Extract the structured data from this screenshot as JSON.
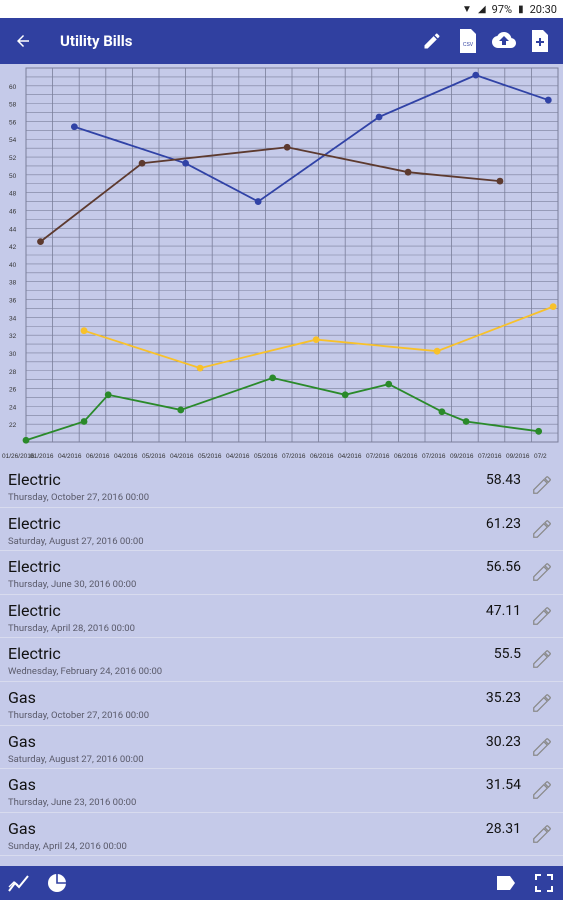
{
  "status": {
    "battery": "97%",
    "time": "20:30"
  },
  "app_bar": {
    "title": "Utility Bills"
  },
  "chart_data": {
    "type": "line",
    "ylim": [
      20,
      62
    ],
    "yticks": [
      22,
      24,
      26,
      28,
      30,
      32,
      34,
      36,
      38,
      40,
      42,
      44,
      46,
      48,
      50,
      52,
      54,
      56,
      58,
      60
    ],
    "x_labels": [
      "01/26/2016",
      "01/2016",
      "04/2016",
      "06/2016",
      "04/2016",
      "05/2016",
      "04/2016",
      "05/2016",
      "04/2016",
      "05/2016",
      "07/2016",
      "06/2016",
      "04/2016",
      "07/2016",
      "06/2016",
      "07/2016",
      "09/2016",
      "07/2016",
      "09/2016",
      "07/2"
    ],
    "series": [
      {
        "color": "#3042a6",
        "points": [
          [
            1.0,
            55.4
          ],
          [
            3.3,
            51.3
          ],
          [
            4.8,
            47.0
          ],
          [
            7.3,
            56.5
          ],
          [
            9.3,
            61.2
          ],
          [
            10.8,
            58.4
          ]
        ]
      },
      {
        "color": "#5d3a2f",
        "points": [
          [
            0.3,
            42.5
          ],
          [
            2.4,
            51.3
          ],
          [
            5.4,
            53.1
          ],
          [
            7.9,
            50.3
          ],
          [
            9.8,
            49.3
          ]
        ]
      },
      {
        "color": "#f8c12a",
        "points": [
          [
            1.2,
            32.5
          ],
          [
            3.6,
            28.3
          ],
          [
            6.0,
            31.5
          ],
          [
            8.5,
            30.2
          ],
          [
            10.9,
            35.2
          ]
        ]
      },
      {
        "color": "#2a8a2a",
        "points": [
          [
            0.0,
            20.2
          ],
          [
            1.2,
            22.3
          ],
          [
            1.7,
            25.3
          ],
          [
            3.2,
            23.6
          ],
          [
            5.1,
            27.2
          ],
          [
            6.6,
            25.3
          ],
          [
            7.5,
            26.5
          ],
          [
            8.6,
            23.4
          ],
          [
            9.1,
            22.3
          ],
          [
            10.6,
            21.2
          ]
        ]
      }
    ]
  },
  "entries": [
    {
      "name": "Electric",
      "date": "Thursday, October 27, 2016 00:00",
      "amount": "58.43"
    },
    {
      "name": "Electric",
      "date": "Saturday, August 27, 2016 00:00",
      "amount": "61.23"
    },
    {
      "name": "Electric",
      "date": "Thursday, June 30, 2016 00:00",
      "amount": "56.56"
    },
    {
      "name": "Electric",
      "date": "Thursday, April 28, 2016 00:00",
      "amount": "47.11"
    },
    {
      "name": "Electric",
      "date": "Wednesday, February 24, 2016 00:00",
      "amount": "55.5"
    },
    {
      "name": "Gas",
      "date": "Thursday, October 27, 2016 00:00",
      "amount": "35.23"
    },
    {
      "name": "Gas",
      "date": "Saturday, August 27, 2016 00:00",
      "amount": "30.23"
    },
    {
      "name": "Gas",
      "date": "Thursday, June 23, 2016 00:00",
      "amount": "31.54"
    },
    {
      "name": "Gas",
      "date": "Sunday, April 24, 2016 00:00",
      "amount": "28.31"
    }
  ]
}
